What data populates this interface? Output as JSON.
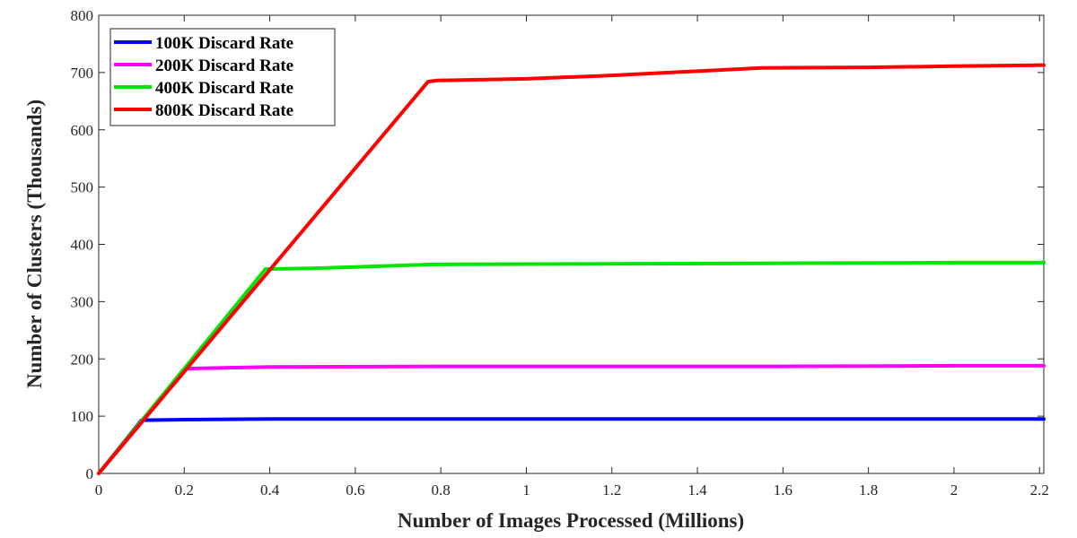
{
  "chart_data": {
    "type": "line",
    "title": "",
    "xlabel": "Number of Images Processed (Millions)",
    "ylabel": "Number of Clusters (Thousands)",
    "xlim": [
      0,
      2.21
    ],
    "ylim": [
      0,
      800
    ],
    "xticks": [
      0,
      0.2,
      0.4,
      0.6,
      0.8,
      1,
      1.2,
      1.4,
      1.6,
      1.8,
      2,
      2.2
    ],
    "xtick_labels": [
      "0",
      "0.2",
      "0.4",
      "0.6",
      "0.8",
      "1",
      "1.2",
      "1.4",
      "1.6",
      "1.8",
      "2",
      "2.2"
    ],
    "yticks": [
      0,
      100,
      200,
      300,
      400,
      500,
      600,
      700,
      800
    ],
    "ytick_labels": [
      "0",
      "100",
      "200",
      "300",
      "400",
      "500",
      "600",
      "700",
      "800"
    ],
    "grid": false,
    "legend_position": "top-left",
    "series": [
      {
        "name": "100K Discard Rate",
        "color": "#0000ff",
        "points": [
          [
            0,
            0
          ],
          [
            0.1,
            93
          ],
          [
            0.2,
            94
          ],
          [
            0.4,
            95
          ],
          [
            0.8,
            95
          ],
          [
            1.2,
            95
          ],
          [
            1.6,
            95
          ],
          [
            2.0,
            95
          ],
          [
            2.21,
            95
          ]
        ]
      },
      {
        "name": "200K Discard Rate",
        "color": "#ff00ff",
        "points": [
          [
            0,
            0
          ],
          [
            0.2,
            183
          ],
          [
            0.4,
            186
          ],
          [
            0.8,
            187
          ],
          [
            1.2,
            187
          ],
          [
            1.6,
            187
          ],
          [
            2.0,
            188
          ],
          [
            2.21,
            188
          ]
        ]
      },
      {
        "name": "400K Discard Rate",
        "color": "#00e600",
        "points": [
          [
            0,
            0
          ],
          [
            0.39,
            357
          ],
          [
            0.5,
            358
          ],
          [
            0.78,
            365
          ],
          [
            1.2,
            366
          ],
          [
            1.6,
            367
          ],
          [
            2.0,
            368
          ],
          [
            2.21,
            368
          ]
        ]
      },
      {
        "name": "800K Discard Rate",
        "color": "#ff0000",
        "points": [
          [
            0,
            0
          ],
          [
            0.77,
            684
          ],
          [
            0.79,
            686
          ],
          [
            1.0,
            689
          ],
          [
            1.2,
            695
          ],
          [
            1.55,
            708
          ],
          [
            1.8,
            709
          ],
          [
            2.0,
            711
          ],
          [
            2.21,
            713
          ]
        ]
      }
    ]
  }
}
